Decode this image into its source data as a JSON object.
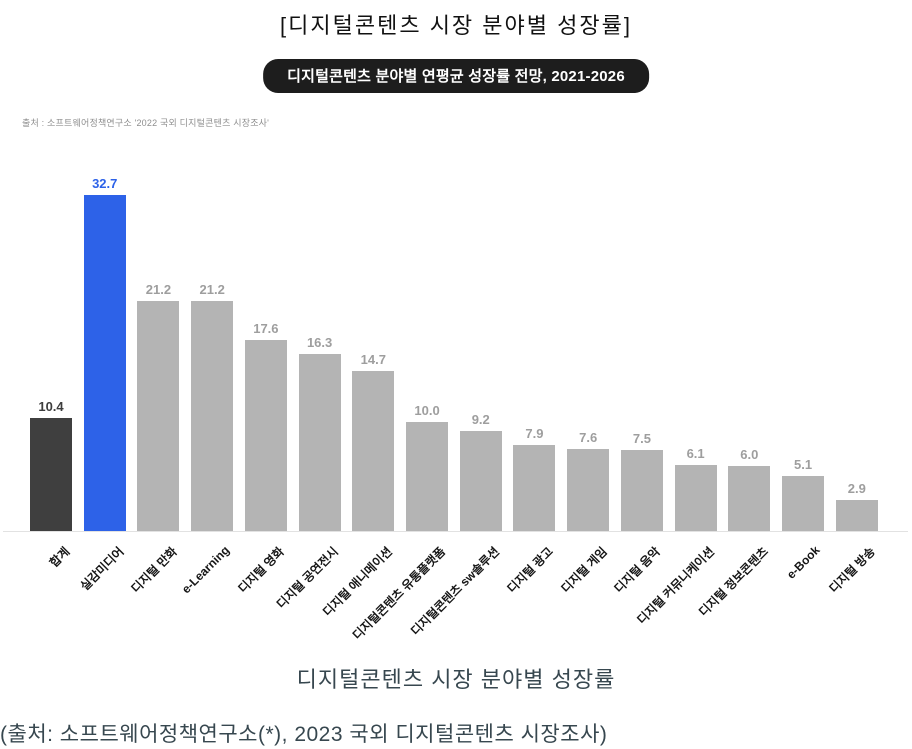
{
  "page": {
    "title": "[디지털콘텐츠 시장 분야별 성장률]",
    "badge": "디지털콘텐츠 분야별 연평균 성장률 전망, 2021-2026",
    "top_source": "출처 : 소프트웨어정책연구소 '2022 국외 디지털콘텐츠 시장조사'",
    "caption": "디지털콘텐츠 시장 분야별 성장률",
    "bottom_source": "(출처: 소프트웨어정책연구소(*), 2023 국외 디지털콘텐츠 시장조사)"
  },
  "colors": {
    "badge_bg": "#1d1d1d",
    "badge_text": "#ffffff",
    "bar_total": "#3f3f3f",
    "bar_highlight": "#2d62e8",
    "bar_default": "#b4b4b4",
    "value_total": "#3d3d3d",
    "value_highlight": "#2d62e8",
    "value_default": "#9e9e9e",
    "caption_text": "#37474f",
    "axis_line": "#e2e2e2"
  },
  "chart_data": {
    "type": "bar",
    "title": "디지털콘텐츠 분야별 연평균 성장률 전망, 2021-2026",
    "xlabel": "",
    "ylabel": "",
    "ylim": [
      0,
      32.7
    ],
    "grid": false,
    "legend": false,
    "categories": [
      "합계",
      "실감미디어",
      "디지털 만화",
      "e-Learning",
      "디지털 영화",
      "디지털 공연전시",
      "디지털 애니메이션",
      "디지털콘텐츠 유통플랫폼",
      "디지털콘텐츠 sw솔루션",
      "디지털 광고",
      "디지털 게임",
      "디지털 음악",
      "디지털 커뮤니케이션",
      "디지털 정보콘텐츠",
      "e-Book",
      "디지털 방송"
    ],
    "values": [
      10.4,
      32.7,
      21.2,
      21.2,
      17.6,
      16.3,
      14.7,
      10.0,
      9.2,
      7.9,
      7.6,
      7.5,
      6.1,
      6.0,
      5.1,
      2.9
    ],
    "value_labels": [
      "10.4",
      "32.7",
      "21.2",
      "21.2",
      "17.6",
      "16.3",
      "14.7",
      "10.0",
      "9.2",
      "7.9",
      "7.6",
      "7.5",
      "6.1",
      "6.0",
      "5.1",
      "2.9"
    ],
    "bar_styles": [
      "total",
      "highlight",
      "default",
      "default",
      "default",
      "default",
      "default",
      "default",
      "default",
      "default",
      "default",
      "default",
      "default",
      "default",
      "default",
      "default"
    ]
  }
}
